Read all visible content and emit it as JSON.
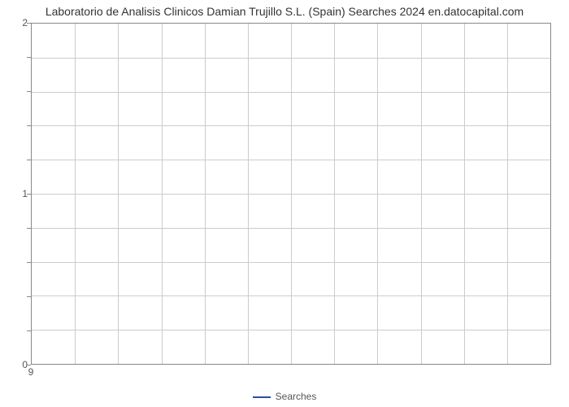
{
  "chart": {
    "type": "line",
    "title": "Laboratorio de Analisis Clinicos Damian Trujillo S.L. (Spain) Searches 2024 en.datocapital.com",
    "title_fontsize": 14,
    "title_color": "#333333",
    "background_color": "#ffffff",
    "plot_border_color": "#888888",
    "grid_color": "#cccccc",
    "label_color": "#555555",
    "label_fontsize": 12,
    "x": {
      "ticks": [
        9
      ],
      "grid_count": 12
    },
    "y": {
      "min": 0,
      "max": 2,
      "major_ticks": [
        0,
        1,
        2
      ],
      "minor_divisions": 5
    },
    "series": [
      {
        "name": "Searches",
        "color": "#2b4ea0",
        "line_width": 2,
        "values": []
      }
    ],
    "legend": {
      "position": "bottom-center",
      "items": [
        {
          "label": "Searches",
          "color": "#2b4ea0"
        }
      ]
    }
  }
}
